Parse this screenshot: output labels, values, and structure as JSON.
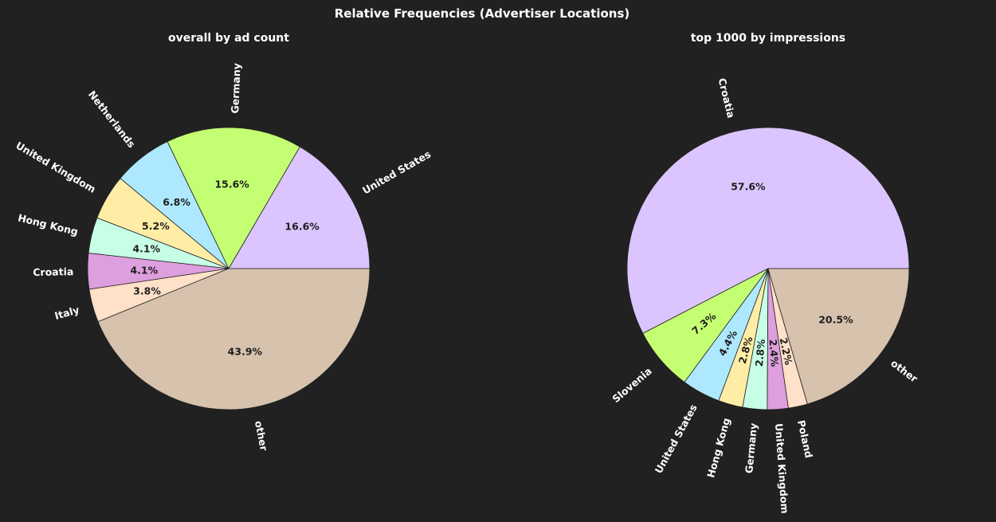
{
  "figure_title": "Relative Frequencies (Advertiser Locations)",
  "chart_data": [
    {
      "type": "pie",
      "title": "overall by ad count",
      "categories": [
        "United States",
        "Germany",
        "Netherlands",
        "United Kingdom",
        "Hong Kong",
        "Croatia",
        "Italy",
        "other"
      ],
      "values": [
        16.6,
        15.6,
        6.8,
        5.2,
        4.1,
        4.1,
        3.8,
        43.9
      ],
      "value_labels": [
        "16.6%",
        "15.6%",
        "6.8%",
        "5.2%",
        "4.1%",
        "4.1%",
        "3.8%",
        "43.9%"
      ],
      "colors": [
        "#dcc5ff",
        "#c4ff73",
        "#ade8ff",
        "#ffeda6",
        "#c7ffe6",
        "#dd9fdd",
        "#ffe0c8",
        "#d6c2ad"
      ],
      "start_angle_deg": 0,
      "direction": "counterclockwise",
      "rotate_labels": true
    },
    {
      "type": "pie",
      "title": "top 1000 by impressions",
      "categories": [
        "Croatia",
        "Slovenia",
        "United States",
        "Hong Kong",
        "Germany",
        "United Kingdom",
        "Poland",
        "other"
      ],
      "values": [
        57.6,
        7.3,
        4.4,
        2.8,
        2.8,
        2.4,
        2.2,
        20.5
      ],
      "value_labels": [
        "57.6%",
        "7.3%",
        "4.4%",
        "2.8%",
        "2.8%",
        "2.4%",
        "2.2%",
        "20.5%"
      ],
      "colors": [
        "#dcc5ff",
        "#c4ff73",
        "#ade8ff",
        "#ffeda6",
        "#c7ffe6",
        "#dd9fdd",
        "#ffe0c8",
        "#d6c2ad"
      ],
      "start_angle_deg": 0,
      "direction": "counterclockwise",
      "rotate_labels": true
    }
  ]
}
